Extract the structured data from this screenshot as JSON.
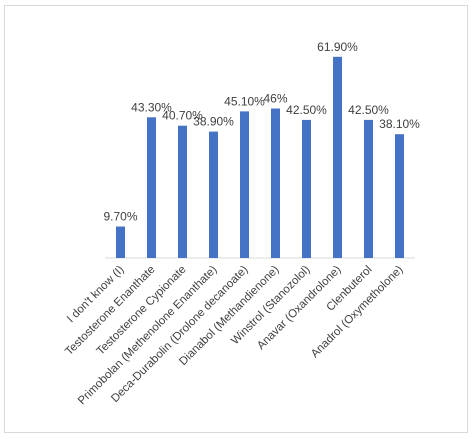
{
  "chart_data": {
    "type": "bar",
    "categories": [
      "I don't know (I)",
      "Testosterone Enanthate",
      "Testosterone Cypionate",
      "Primobolan (Methenolone Enanthate)",
      "Deca-Durabolin (Drolone decanoate)",
      "Dianabol (Methandienone)",
      "Winstrol (Stanozolol)",
      "Anavar (Oxandrolone)",
      "Clenbuterol",
      "Anadrol (Oxymetholone)"
    ],
    "values": [
      9.7,
      43.3,
      40.7,
      38.9,
      45.1,
      46,
      42.5,
      61.9,
      42.5,
      38.1
    ],
    "value_labels": [
      "9.70%",
      "43.30%",
      "40.70%",
      "38.90%",
      "45.10%",
      "46%",
      "42.50%",
      "61.90%",
      "42.50%",
      "38.10%"
    ],
    "title": "",
    "xlabel": "",
    "ylabel": "",
    "ylim": [
      0,
      65
    ],
    "grid": false,
    "legend": "none",
    "bar_color": "#4472c4"
  }
}
